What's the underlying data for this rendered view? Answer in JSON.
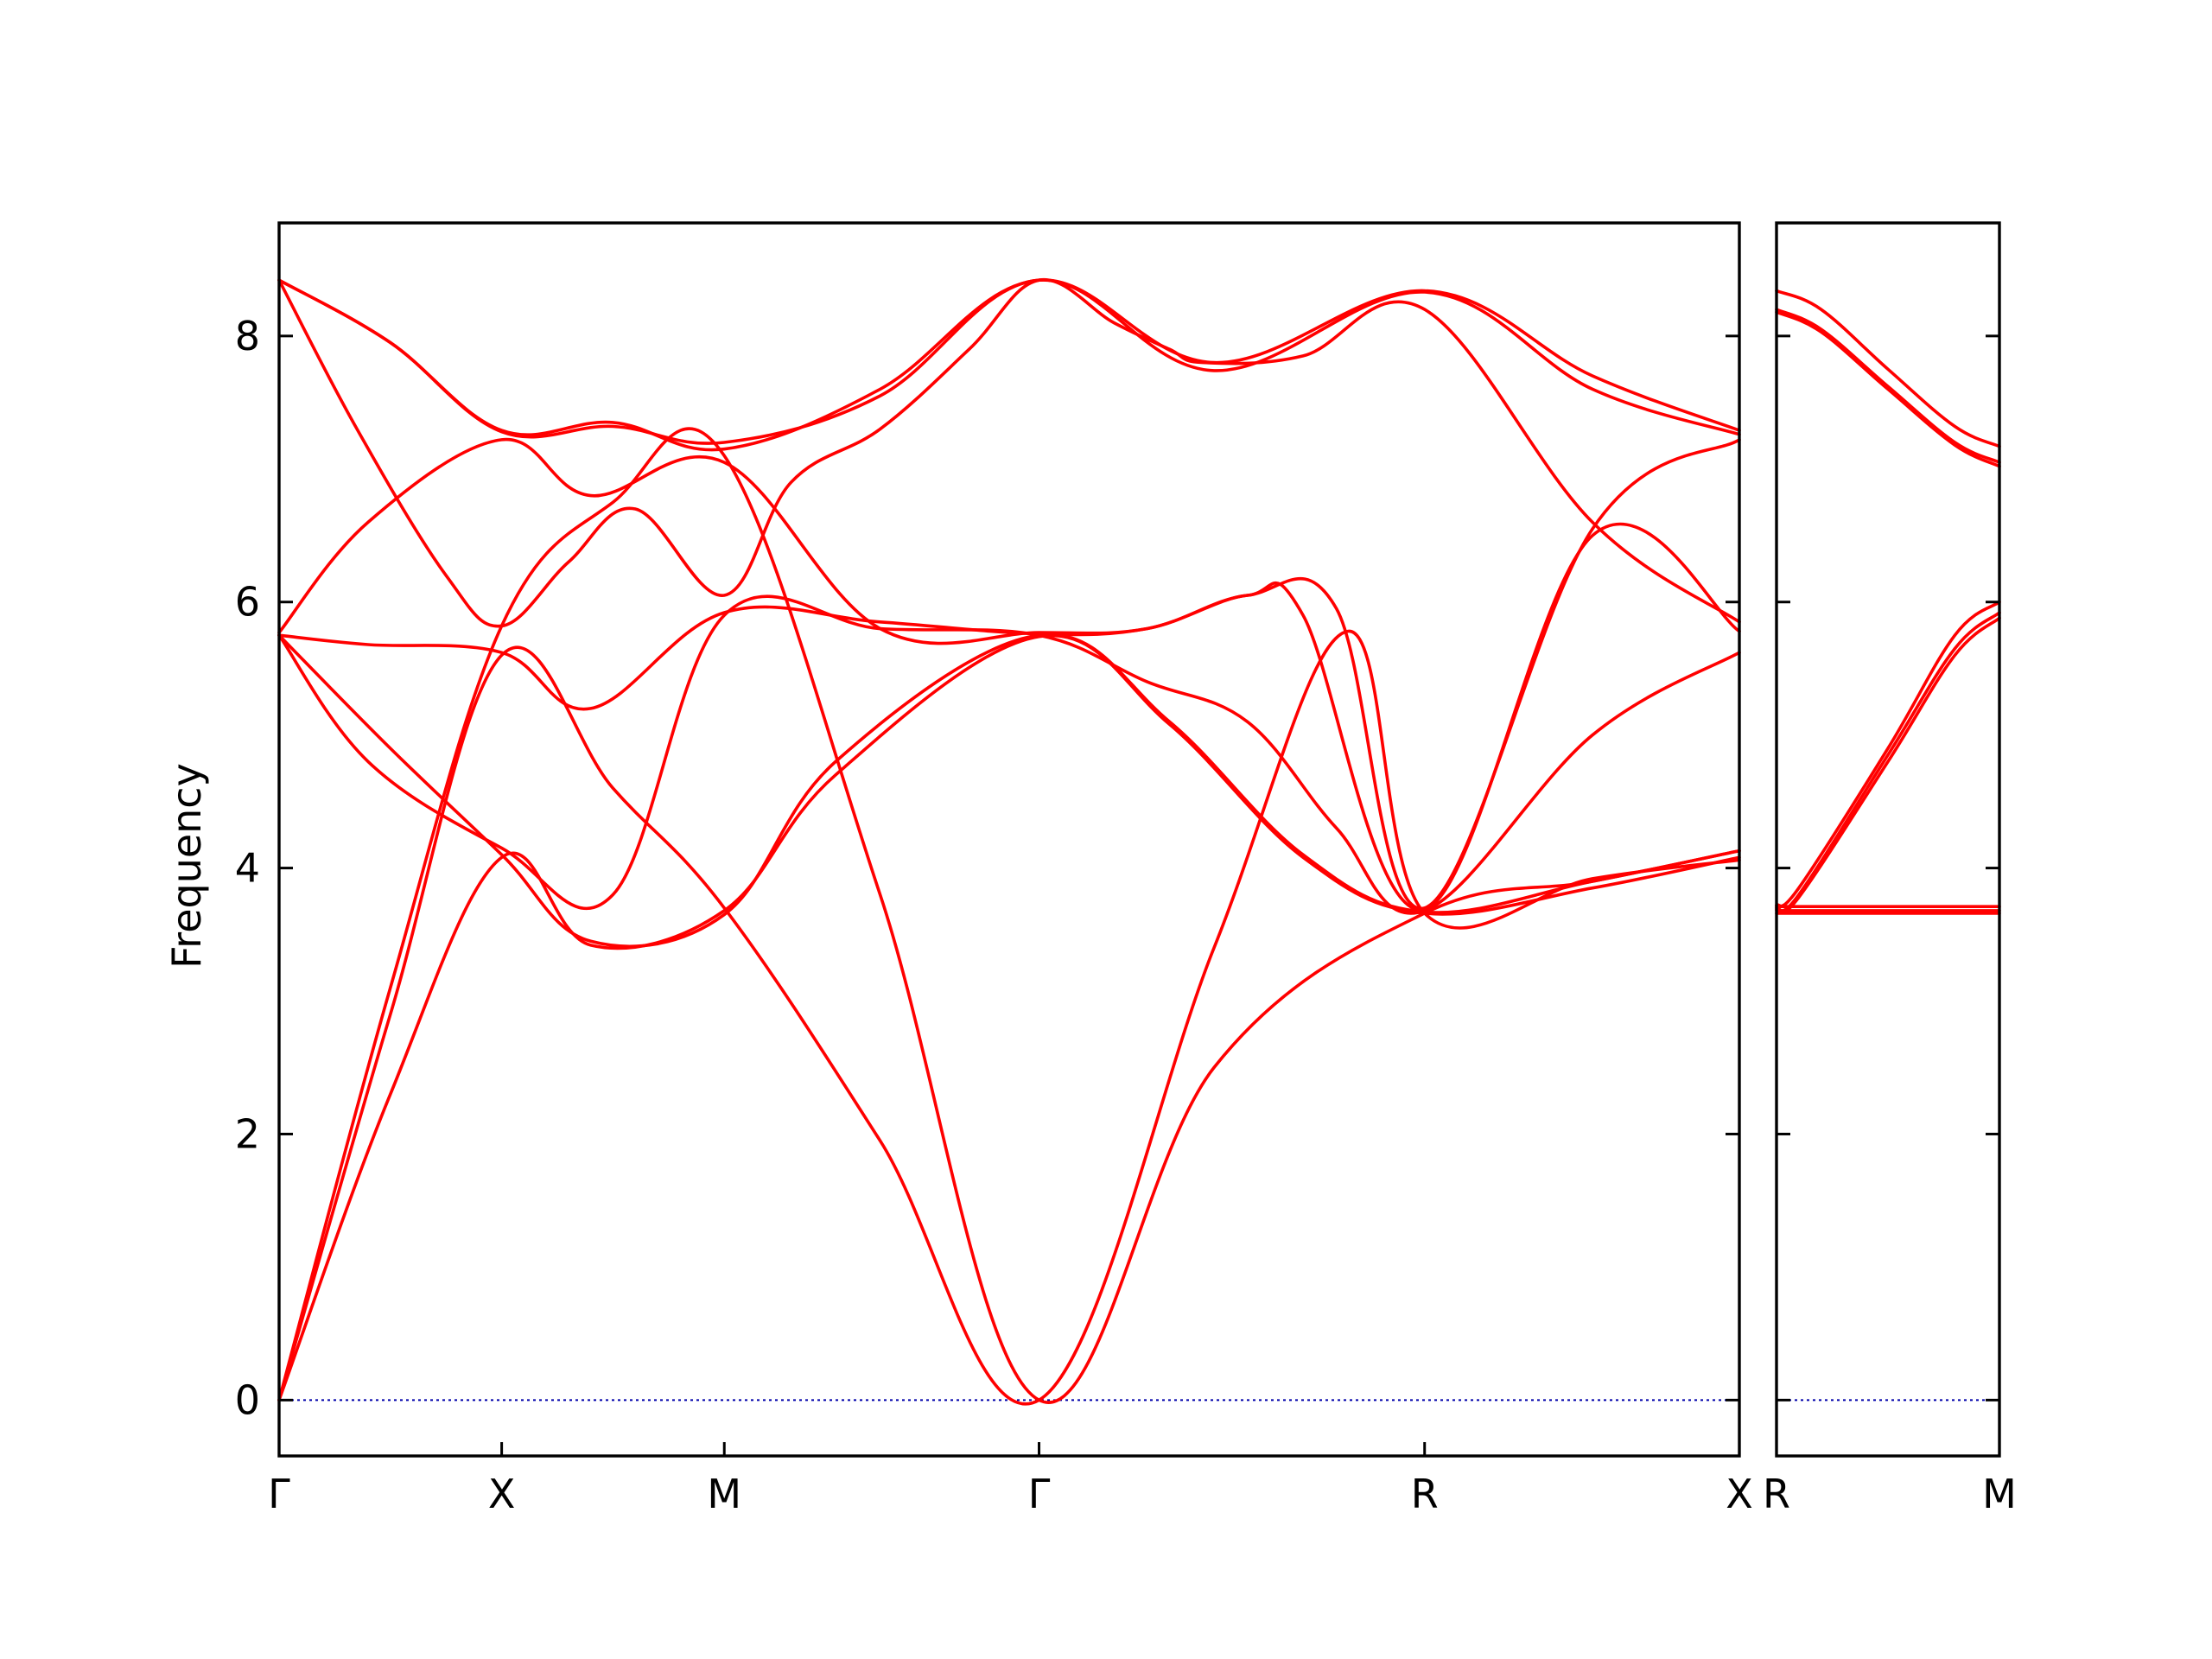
{
  "chart_data": {
    "type": "line",
    "ylabel": "Frequency",
    "ylim": [
      -0.42,
      8.85
    ],
    "yticks": [
      0,
      2,
      4,
      6,
      8
    ],
    "colors": {
      "bands": "#ff0000",
      "zero_line": "#0000aa",
      "axes": "#000000"
    },
    "grid": false,
    "panels": [
      {
        "x_ticks": [
          {
            "x": 0.0,
            "label": "Γ"
          },
          {
            "x": 1.0,
            "label": "X"
          },
          {
            "x": 2.0,
            "label": "M"
          },
          {
            "x": 3.414,
            "label": "Γ"
          },
          {
            "x": 5.146,
            "label": "R"
          },
          {
            "x": 6.56,
            "label": "X"
          }
        ],
        "xlim": [
          0,
          6.56
        ],
        "series": [
          {
            "x": [
              0,
              0.5,
              1.0,
              1.5,
              2.0,
              2.7,
              3.414,
              4.2,
              5.146,
              5.9,
              6.56
            ],
            "values": [
              8.42,
              7.95,
              7.29,
              7.35,
              7.15,
              7.6,
              8.42,
              7.8,
              8.34,
              7.7,
              7.29
            ]
          },
          {
            "x": [
              0,
              0.5,
              1.0,
              1.5,
              2.0,
              2.7,
              3.414,
              4.2,
              5.146,
              5.9,
              6.56
            ],
            "values": [
              8.42,
              7.95,
              7.28,
              7.32,
              7.2,
              7.55,
              8.42,
              7.74,
              8.33,
              7.6,
              7.26
            ]
          },
          {
            "x": [
              0,
              0.35,
              0.75,
              1.0,
              1.3,
              1.6,
              2.0,
              2.3,
              2.7,
              3.1,
              3.414,
              3.75,
              4.0,
              4.15,
              4.6,
              5.146,
              5.9,
              6.56
            ],
            "values": [
              8.42,
              7.3,
              6.2,
              5.82,
              6.3,
              6.7,
              6.05,
              6.9,
              7.3,
              7.9,
              8.42,
              8.1,
              7.9,
              7.8,
              7.85,
              8.2,
              6.6,
              5.85
            ]
          },
          {
            "x": [
              0,
              0.4,
              1.0,
              1.4,
              2.0,
              2.7,
              3.414,
              3.9,
              4.35,
              4.75,
              5.146,
              5.9,
              6.56
            ],
            "values": [
              5.77,
              6.6,
              7.22,
              6.8,
              7.05,
              5.8,
              5.77,
              5.8,
              6.05,
              5.95,
              3.7,
              6.55,
              7.22
            ]
          },
          {
            "x": [
              0,
              0.4,
              1.0,
              1.4,
              2.0,
              2.7,
              3.414,
              3.9,
              4.35,
              4.6,
              5.146,
              5.9,
              6.56
            ],
            "values": [
              5.75,
              5.68,
              5.62,
              5.2,
              5.92,
              5.85,
              5.76,
              5.8,
              6.05,
              5.9,
              3.69,
              6.5,
              5.78
            ]
          },
          {
            "x": [
              0,
              0.4,
              1.0,
              1.5,
              2.0,
              2.7,
              3.414,
              3.9,
              4.35,
              4.75,
              5.146,
              5.9,
              6.56
            ],
            "values": [
              5.75,
              4.8,
              4.15,
              3.8,
              5.9,
              5.8,
              5.75,
              5.4,
              5.1,
              4.3,
              3.68,
              5.0,
              5.62
            ]
          },
          {
            "x": [
              0,
              0.5,
              1.0,
              1.4,
              2.0,
              2.5,
              3.414,
              4.0,
              4.6,
              5.146,
              5.9,
              6.56
            ],
            "values": [
              5.75,
              4.9,
              4.1,
              3.45,
              3.65,
              4.8,
              5.75,
              5.1,
              4.1,
              3.67,
              3.9,
              4.13
            ]
          },
          {
            "x": [
              0,
              0.5,
              1.0,
              1.4,
              2.0,
              2.5,
              3.414,
              4.0,
              4.6,
              5.146,
              5.9,
              6.56
            ],
            "values": [
              0,
              2.3,
              4.08,
              3.42,
              3.68,
              4.7,
              5.74,
              5.08,
              4.08,
              3.66,
              3.85,
              4.08
            ]
          },
          {
            "x": [
              0,
              0.5,
              1.0,
              1.5,
              2.0,
              2.7,
              3.414,
              4.2,
              4.8,
              5.146,
              5.9,
              6.56
            ],
            "values": [
              0,
              2.9,
              5.6,
              4.6,
              3.7,
              1.95,
              0,
              3.4,
              5.78,
              3.66,
              3.92,
              4.06
            ]
          },
          {
            "x": [
              0,
              0.5,
              1.0,
              1.5,
              2.0,
              2.7,
              3.414,
              4.2,
              5.146,
              5.9,
              6.56
            ],
            "values": [
              0,
              3.1,
              5.82,
              6.75,
              7.1,
              3.8,
              0,
              2.5,
              3.66,
              3.9,
              4.13
            ]
          }
        ]
      },
      {
        "x_ticks": [
          {
            "x": 0.0,
            "label": "R"
          },
          {
            "x": 1.0,
            "label": "M"
          }
        ],
        "xlim": [
          0,
          1.0
        ],
        "series": [
          {
            "x": [
              0,
              0.2,
              0.5,
              0.8,
              1.0
            ],
            "values": [
              8.34,
              8.2,
              7.75,
              7.32,
              7.17
            ]
          },
          {
            "x": [
              0,
              0.2,
              0.5,
              0.8,
              1.0
            ],
            "values": [
              8.2,
              8.05,
              7.62,
              7.2,
              7.05
            ]
          },
          {
            "x": [
              0,
              0.2,
              0.5,
              0.8,
              1.0
            ],
            "values": [
              8.18,
              8.03,
              7.6,
              7.18,
              7.02
            ]
          },
          {
            "x": [
              0,
              0.1,
              0.5,
              0.8,
              1.0
            ],
            "values": [
              3.72,
              3.85,
              4.9,
              5.75,
              6.0
            ]
          },
          {
            "x": [
              0,
              0.1,
              0.5,
              0.8,
              1.0
            ],
            "values": [
              3.7,
              3.8,
              4.85,
              5.65,
              5.92
            ]
          },
          {
            "x": [
              0,
              0.1,
              0.5,
              0.8,
              1.0
            ],
            "values": [
              3.69,
              3.78,
              4.8,
              5.6,
              5.88
            ]
          },
          {
            "x": [
              0,
              0.5,
              1.0
            ],
            "values": [
              3.71,
              3.71,
              3.71
            ]
          },
          {
            "x": [
              0,
              0.5,
              1.0
            ],
            "values": [
              3.68,
              3.68,
              3.68
            ]
          },
          {
            "x": [
              0,
              0.5,
              1.0
            ],
            "values": [
              3.66,
              3.66,
              3.66
            ]
          }
        ]
      }
    ]
  }
}
